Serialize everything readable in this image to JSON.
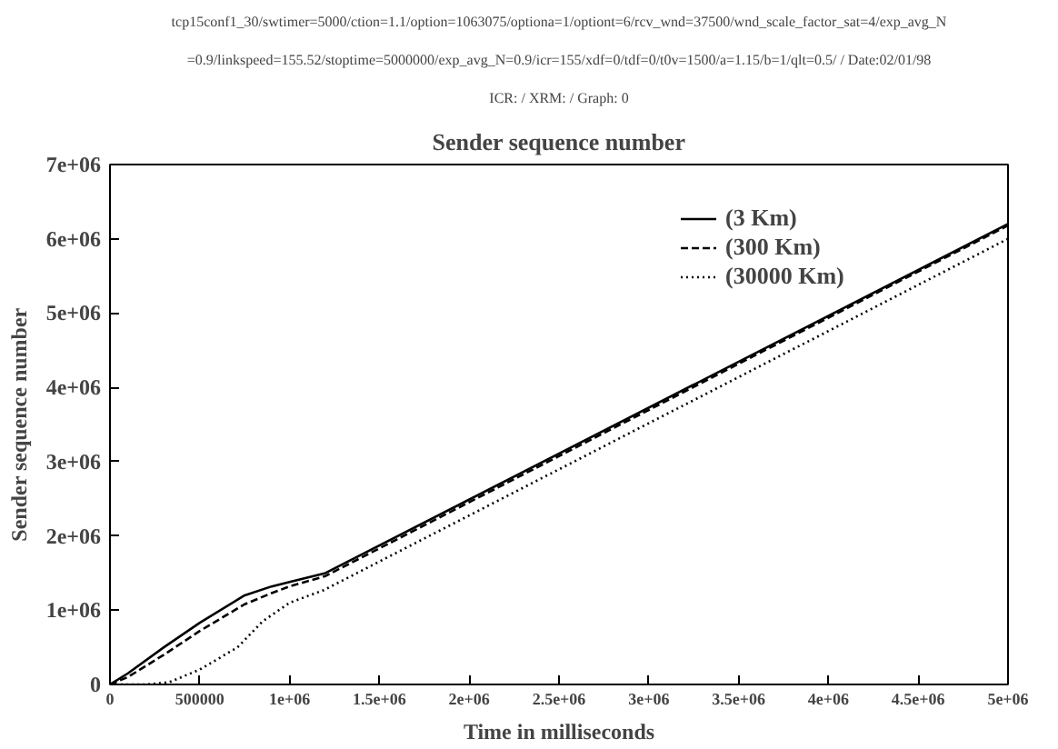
{
  "chart_data": {
    "type": "line",
    "title": "Sender sequence number",
    "annotations": [
      "tcp15conf1_30/swtimer=5000/ction=1.1/option=1063075/optiona=1/optiont=6/rcv_wnd=37500/wnd_scale_factor_sat=4/exp_avg_N",
      "=0.9/linkspeed=155.52/stoptime=5000000/exp_avg_N=0.9/icr=155/xdf=0/tdf=0/t0v=1500/a=1.15/b=1/qlt=0.5/ / Date:02/01/98",
      "ICR: / XRM: / Graph: 0"
    ],
    "xlabel": "Time in milliseconds",
    "ylabel": "Sender sequence number",
    "xlim": [
      0,
      5000000
    ],
    "ylim": [
      0,
      7000000
    ],
    "xticks": [
      0,
      500000,
      {
        "value": 1000000,
        "label": "1e+06"
      },
      {
        "value": 1500000,
        "label": "1.5e+06"
      },
      {
        "value": 2000000,
        "label": "2e+06"
      },
      {
        "value": 2500000,
        "label": "2.5e+06"
      },
      {
        "value": 3000000,
        "label": "3e+06"
      },
      {
        "value": 3500000,
        "label": "3.5e+06"
      },
      {
        "value": 4000000,
        "label": "4e+06"
      },
      {
        "value": 4500000,
        "label": "4.5e+06"
      },
      {
        "value": 5000000,
        "label": "5e+06"
      }
    ],
    "yticks": [
      0,
      {
        "value": 1000000,
        "label": "1e+06"
      },
      {
        "value": 2000000,
        "label": "2e+06"
      },
      {
        "value": 3000000,
        "label": "3e+06"
      },
      {
        "value": 4000000,
        "label": "4e+06"
      },
      {
        "value": 5000000,
        "label": "5e+06"
      },
      {
        "value": 6000000,
        "label": "6e+06"
      },
      {
        "value": 7000000,
        "label": "7e+06"
      }
    ],
    "grid": false,
    "legend": "top right",
    "marker": "none",
    "series": [
      {
        "name": "(3 Km)",
        "color": "#000000",
        "line_style": "solid",
        "x": [
          0,
          100000,
          300000,
          500000,
          750000,
          900000,
          1000000,
          1200000,
          5000000
        ],
        "values": [
          0,
          150000,
          500000,
          830000,
          1200000,
          1320000,
          1380000,
          1500000,
          6200000
        ]
      },
      {
        "name": "(300 Km)",
        "color": "#000000",
        "line_style": "dashed",
        "x": [
          0,
          100000,
          300000,
          500000,
          750000,
          900000,
          1000000,
          1200000,
          5000000
        ],
        "values": [
          0,
          100000,
          400000,
          720000,
          1080000,
          1230000,
          1320000,
          1460000,
          6180000
        ]
      },
      {
        "name": "(30000 Km)",
        "color": "#000000",
        "line_style": "dotted",
        "x": [
          0,
          200000,
          330000,
          500000,
          710000,
          850000,
          1000000,
          1190000,
          5000000
        ],
        "values": [
          0,
          0,
          30000,
          200000,
          500000,
          850000,
          1100000,
          1270000,
          6000000
        ]
      }
    ]
  }
}
